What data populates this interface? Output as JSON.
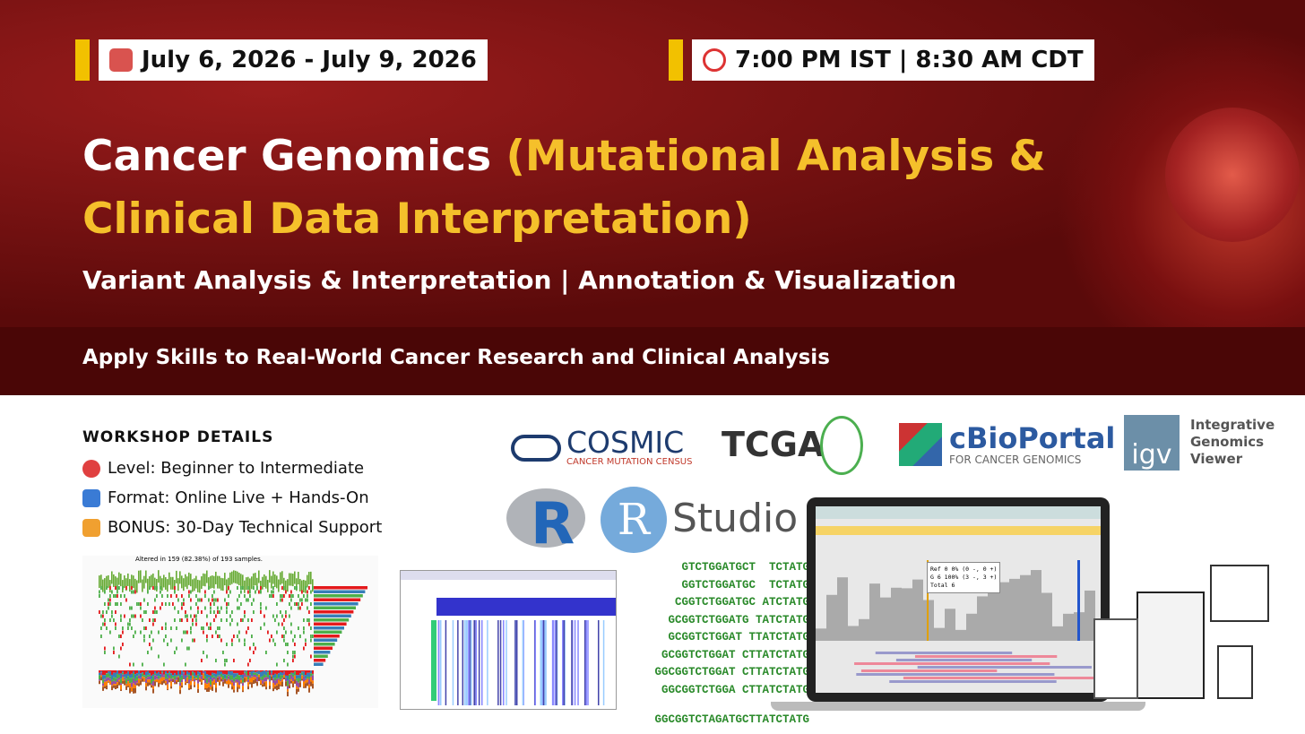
{
  "header": {
    "date": "July 6, 2026 - July 9, 2026",
    "time": "7:00 PM IST | 8:30 AM CDT",
    "title": "Cancer Genomics",
    "title_highlight_line1": "(Mutational Analysis &",
    "title_highlight_line2": "Clinical Data Interpretation)",
    "subtitle": "Variant Analysis & Interpretation | Annotation & Visualization",
    "tagline": "Apply Skills to Real-World Cancer Research and Clinical Analysis"
  },
  "details": {
    "heading": "WORKSHOP DETAILS",
    "items": [
      "Level: Beginner to Intermediate",
      "Format: Online Live + Hands-On",
      "BONUS: 30-Day Technical Support"
    ]
  },
  "logos": {
    "cosmic": {
      "name": "COSMIC",
      "tagline": "CANCER MUTATION CENSUS"
    },
    "tcga": "TCGA",
    "cbioportal": {
      "name": "cBioPortal",
      "tagline": "FOR CANCER GENOMICS"
    },
    "igv": {
      "mark": "igv",
      "name": "Integrative Genomics Viewer"
    },
    "r": "R",
    "rstudio": {
      "r": "R",
      "studio": "Studio"
    }
  },
  "screens": {
    "oncoplot_title": "Altered in 159 (82.38%) of 193 samples.",
    "sequences": [
      "GTCTGGATGCT  TCTATG",
      "GGTCTGGATGC  TCTATG",
      "CGGTCTGGATGC ATCTATG",
      "GCGGTCTGGATG TATCTATG",
      "GCGGTCTGGAT TTATCTATG",
      "GCGGTCTGGAT CTTATCTATG",
      "GGCGGTCTGGAT CTTATCTATG",
      "GGCGGTCTGGA CTTATCTATG",
      "GGCGGTCTAGATGCTTATCTATG"
    ],
    "igv_popup": [
      "Ref  0  0% (0 -, 0 +)",
      "G  6  100% (3 -, 3 +)",
      "Total 6"
    ]
  }
}
